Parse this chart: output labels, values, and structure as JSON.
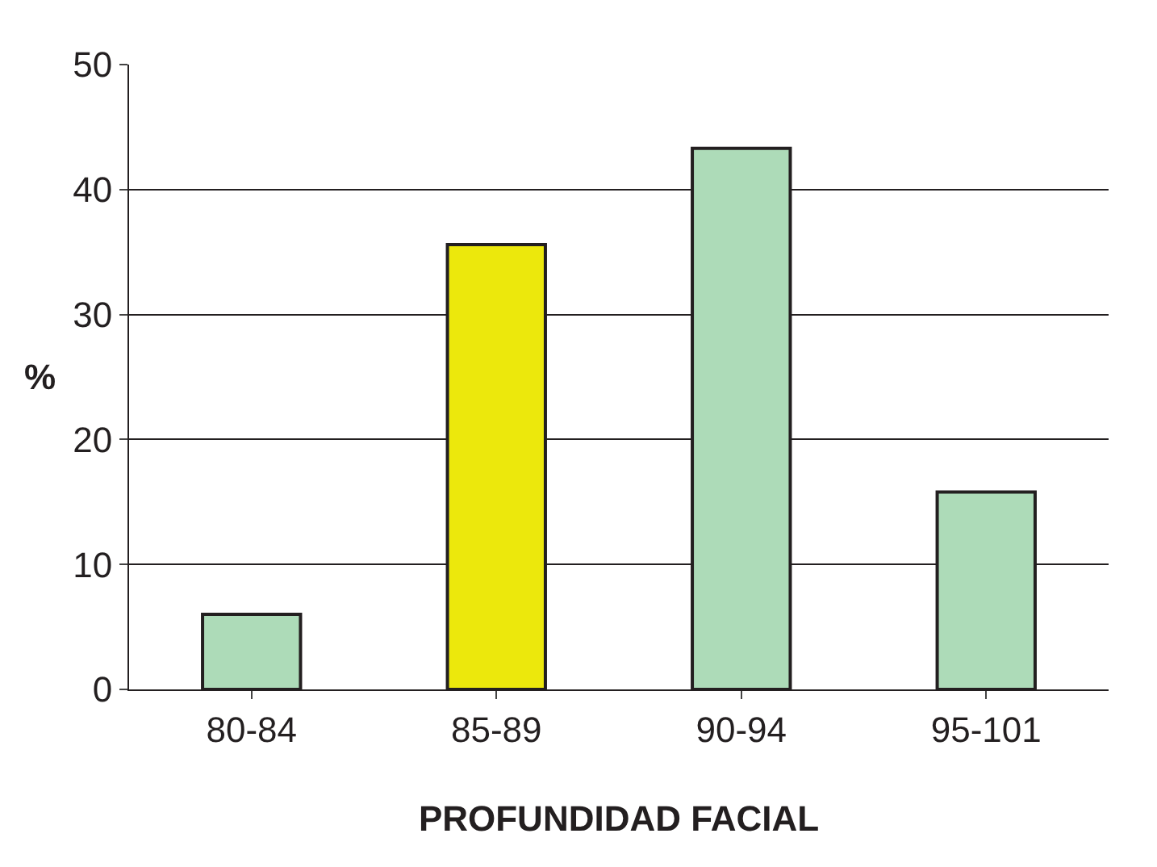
{
  "chart_data": {
    "type": "bar",
    "xlabel": "PROFUNDIDAD FACIAL",
    "ylabel": "%",
    "categories": [
      "80-84",
      "85-89",
      "90-94",
      "95-101"
    ],
    "values": [
      6.0,
      35.6,
      43.3,
      15.8
    ],
    "colors": [
      "#addbb8",
      "#ece80c",
      "#addbb8",
      "#addbb8"
    ],
    "ylim": [
      0,
      50
    ],
    "yticks": [
      0,
      10,
      20,
      30,
      40,
      50
    ],
    "grid": "y"
  }
}
